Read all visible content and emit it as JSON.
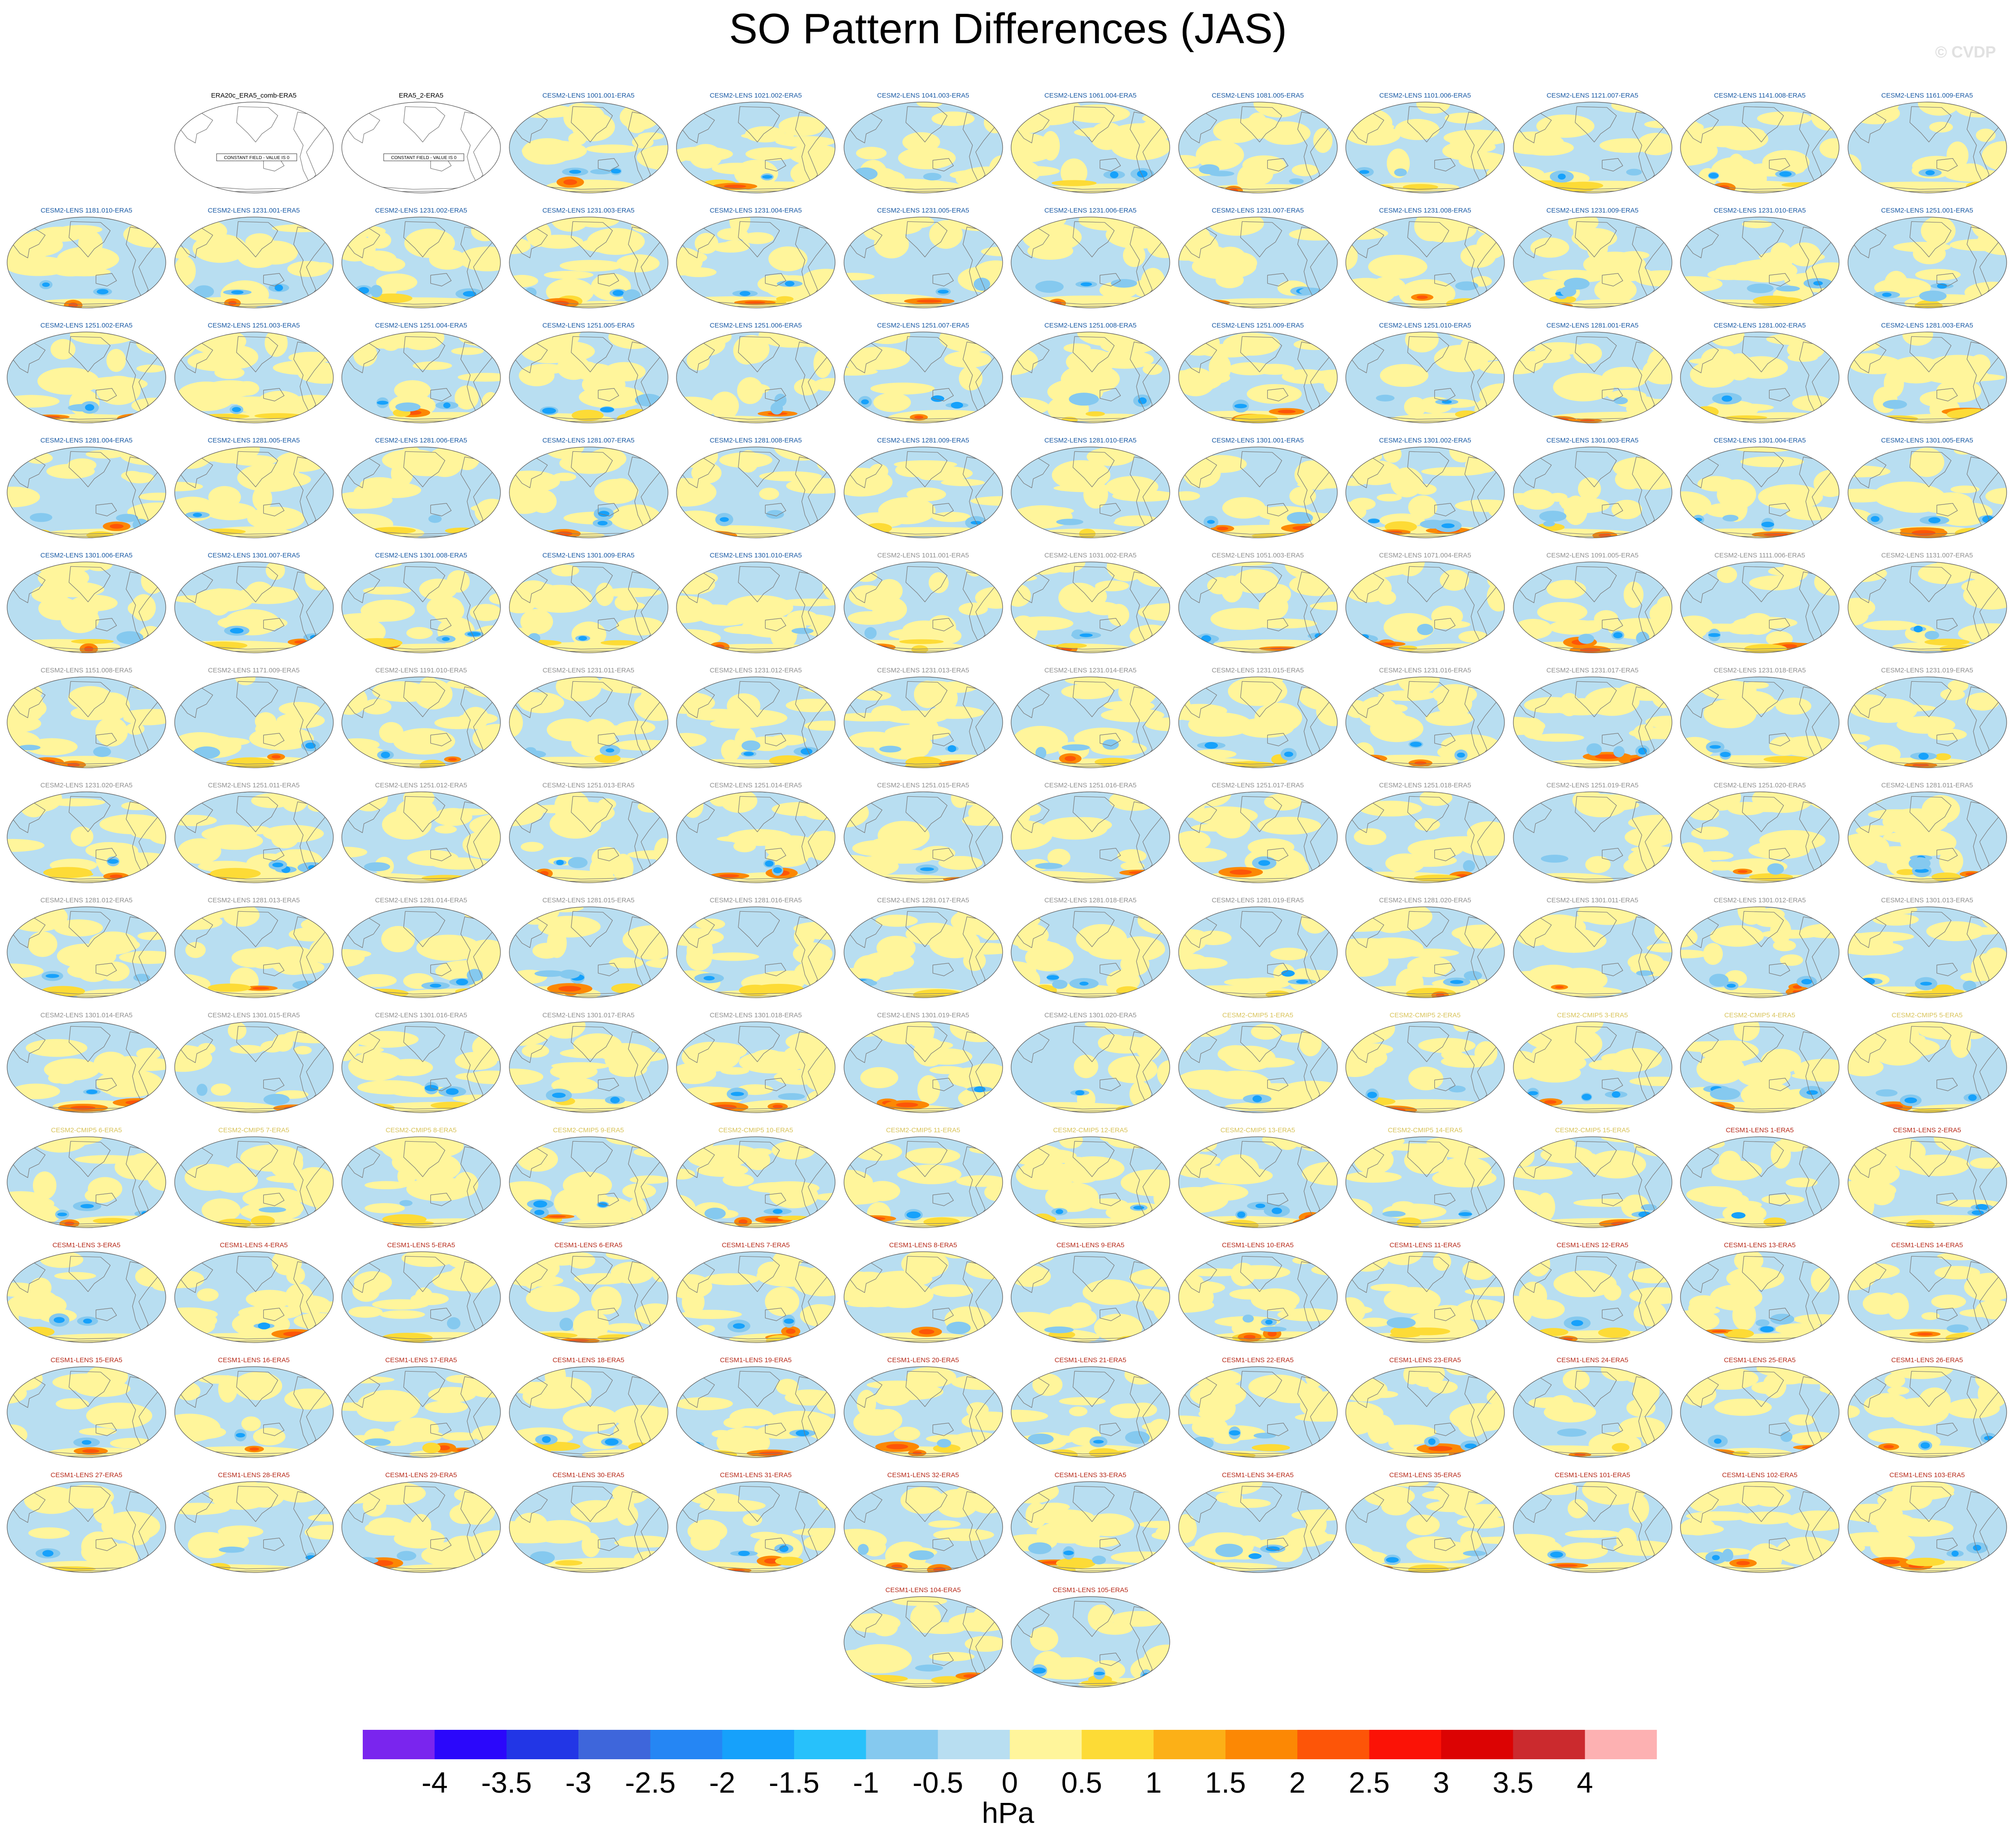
{
  "title": "SO Pattern Differences (JAS)",
  "copyright": "© CVDP",
  "chart_data": {
    "type": "heatmap",
    "title": "SO Pattern Differences (JAS)",
    "units": "hPa",
    "map_projection": "robinson",
    "colorbar": {
      "tick_labels": [
        "-4",
        "-3.5",
        "-3",
        "-2.5",
        "-2",
        "-1.5",
        "-1",
        "-0.5",
        "0",
        "0.5",
        "1",
        "1.5",
        "2",
        "2.5",
        "3",
        "3.5",
        "4"
      ],
      "colors": [
        "#7a25ee",
        "#2b07fb",
        "#2236e6",
        "#3e66db",
        "#2586f4",
        "#16a1fb",
        "#27c1fb",
        "#85c9ef",
        "#b8def1",
        "#fff59b",
        "#fddb36",
        "#fcb017",
        "#fc8804",
        "#fd5508",
        "#fb1206",
        "#dc0303",
        "#cb2a2e",
        "#fdb1b2"
      ],
      "placement": "bottom"
    },
    "panel_layout": "12 columns, 14 rows; the first row starts in column 2 and the last row holds 2 panels in columns 6 and 7",
    "group_colors": {
      "obs": "#000000",
      "cesm2_smbb": "#1a5aa4",
      "cesm2_cmip6": "#8f8f8f",
      "cesm2_cmip5": "#d8c35a",
      "cesm1": "#b62a1a"
    },
    "constant_field_text": "CONSTANT FIELD - VALUE IS 0",
    "panels": [
      {
        "title": "ERA20c_ERA5_comb-ERA5",
        "group": "obs",
        "constant": true
      },
      {
        "title": "ERA5_2-ERA5",
        "group": "obs",
        "constant": true
      },
      {
        "title": "CESM2-LENS 1001.001-ERA5",
        "group": "cesm2_smbb"
      },
      {
        "title": "CESM2-LENS 1021.002-ERA5",
        "group": "cesm2_smbb"
      },
      {
        "title": "CESM2-LENS 1041.003-ERA5",
        "group": "cesm2_smbb"
      },
      {
        "title": "CESM2-LENS 1061.004-ERA5",
        "group": "cesm2_smbb"
      },
      {
        "title": "CESM2-LENS 1081.005-ERA5",
        "group": "cesm2_smbb"
      },
      {
        "title": "CESM2-LENS 1101.006-ERA5",
        "group": "cesm2_smbb"
      },
      {
        "title": "CESM2-LENS 1121.007-ERA5",
        "group": "cesm2_smbb"
      },
      {
        "title": "CESM2-LENS 1141.008-ERA5",
        "group": "cesm2_smbb"
      },
      {
        "title": "CESM2-LENS 1161.009-ERA5",
        "group": "cesm2_smbb"
      },
      {
        "title": "CESM2-LENS 1181.010-ERA5",
        "group": "cesm2_smbb"
      },
      {
        "title": "CESM2-LENS 1231.001-ERA5",
        "group": "cesm2_smbb"
      },
      {
        "title": "CESM2-LENS 1231.002-ERA5",
        "group": "cesm2_smbb"
      },
      {
        "title": "CESM2-LENS 1231.003-ERA5",
        "group": "cesm2_smbb"
      },
      {
        "title": "CESM2-LENS 1231.004-ERA5",
        "group": "cesm2_smbb"
      },
      {
        "title": "CESM2-LENS 1231.005-ERA5",
        "group": "cesm2_smbb"
      },
      {
        "title": "CESM2-LENS 1231.006-ERA5",
        "group": "cesm2_smbb"
      },
      {
        "title": "CESM2-LENS 1231.007-ERA5",
        "group": "cesm2_smbb"
      },
      {
        "title": "CESM2-LENS 1231.008-ERA5",
        "group": "cesm2_smbb"
      },
      {
        "title": "CESM2-LENS 1231.009-ERA5",
        "group": "cesm2_smbb"
      },
      {
        "title": "CESM2-LENS 1231.010-ERA5",
        "group": "cesm2_smbb"
      },
      {
        "title": "CESM2-LENS 1251.001-ERA5",
        "group": "cesm2_smbb"
      },
      {
        "title": "CESM2-LENS 1251.002-ERA5",
        "group": "cesm2_smbb"
      },
      {
        "title": "CESM2-LENS 1251.003-ERA5",
        "group": "cesm2_smbb"
      },
      {
        "title": "CESM2-LENS 1251.004-ERA5",
        "group": "cesm2_smbb"
      },
      {
        "title": "CESM2-LENS 1251.005-ERA5",
        "group": "cesm2_smbb"
      },
      {
        "title": "CESM2-LENS 1251.006-ERA5",
        "group": "cesm2_smbb"
      },
      {
        "title": "CESM2-LENS 1251.007-ERA5",
        "group": "cesm2_smbb"
      },
      {
        "title": "CESM2-LENS 1251.008-ERA5",
        "group": "cesm2_smbb"
      },
      {
        "title": "CESM2-LENS 1251.009-ERA5",
        "group": "cesm2_smbb"
      },
      {
        "title": "CESM2-LENS 1251.010-ERA5",
        "group": "cesm2_smbb"
      },
      {
        "title": "CESM2-LENS 1281.001-ERA5",
        "group": "cesm2_smbb"
      },
      {
        "title": "CESM2-LENS 1281.002-ERA5",
        "group": "cesm2_smbb"
      },
      {
        "title": "CESM2-LENS 1281.003-ERA5",
        "group": "cesm2_smbb"
      },
      {
        "title": "CESM2-LENS 1281.004-ERA5",
        "group": "cesm2_smbb"
      },
      {
        "title": "CESM2-LENS 1281.005-ERA5",
        "group": "cesm2_smbb"
      },
      {
        "title": "CESM2-LENS 1281.006-ERA5",
        "group": "cesm2_smbb"
      },
      {
        "title": "CESM2-LENS 1281.007-ERA5",
        "group": "cesm2_smbb"
      },
      {
        "title": "CESM2-LENS 1281.008-ERA5",
        "group": "cesm2_smbb"
      },
      {
        "title": "CESM2-LENS 1281.009-ERA5",
        "group": "cesm2_smbb"
      },
      {
        "title": "CESM2-LENS 1281.010-ERA5",
        "group": "cesm2_smbb"
      },
      {
        "title": "CESM2-LENS 1301.001-ERA5",
        "group": "cesm2_smbb"
      },
      {
        "title": "CESM2-LENS 1301.002-ERA5",
        "group": "cesm2_smbb"
      },
      {
        "title": "CESM2-LENS 1301.003-ERA5",
        "group": "cesm2_smbb"
      },
      {
        "title": "CESM2-LENS 1301.004-ERA5",
        "group": "cesm2_smbb"
      },
      {
        "title": "CESM2-LENS 1301.005-ERA5",
        "group": "cesm2_smbb"
      },
      {
        "title": "CESM2-LENS 1301.006-ERA5",
        "group": "cesm2_smbb"
      },
      {
        "title": "CESM2-LENS 1301.007-ERA5",
        "group": "cesm2_smbb"
      },
      {
        "title": "CESM2-LENS 1301.008-ERA5",
        "group": "cesm2_smbb"
      },
      {
        "title": "CESM2-LENS 1301.009-ERA5",
        "group": "cesm2_smbb"
      },
      {
        "title": "CESM2-LENS 1301.010-ERA5",
        "group": "cesm2_smbb"
      },
      {
        "title": "CESM2-LENS 1011.001-ERA5",
        "group": "cesm2_cmip6"
      },
      {
        "title": "CESM2-LENS 1031.002-ERA5",
        "group": "cesm2_cmip6"
      },
      {
        "title": "CESM2-LENS 1051.003-ERA5",
        "group": "cesm2_cmip6"
      },
      {
        "title": "CESM2-LENS 1071.004-ERA5",
        "group": "cesm2_cmip6"
      },
      {
        "title": "CESM2-LENS 1091.005-ERA5",
        "group": "cesm2_cmip6"
      },
      {
        "title": "CESM2-LENS 1111.006-ERA5",
        "group": "cesm2_cmip6"
      },
      {
        "title": "CESM2-LENS 1131.007-ERA5",
        "group": "cesm2_cmip6"
      },
      {
        "title": "CESM2-LENS 1151.008-ERA5",
        "group": "cesm2_cmip6"
      },
      {
        "title": "CESM2-LENS 1171.009-ERA5",
        "group": "cesm2_cmip6"
      },
      {
        "title": "CESM2-LENS 1191.010-ERA5",
        "group": "cesm2_cmip6"
      },
      {
        "title": "CESM2-LENS 1231.011-ERA5",
        "group": "cesm2_cmip6"
      },
      {
        "title": "CESM2-LENS 1231.012-ERA5",
        "group": "cesm2_cmip6"
      },
      {
        "title": "CESM2-LENS 1231.013-ERA5",
        "group": "cesm2_cmip6"
      },
      {
        "title": "CESM2-LENS 1231.014-ERA5",
        "group": "cesm2_cmip6"
      },
      {
        "title": "CESM2-LENS 1231.015-ERA5",
        "group": "cesm2_cmip6"
      },
      {
        "title": "CESM2-LENS 1231.016-ERA5",
        "group": "cesm2_cmip6"
      },
      {
        "title": "CESM2-LENS 1231.017-ERA5",
        "group": "cesm2_cmip6"
      },
      {
        "title": "CESM2-LENS 1231.018-ERA5",
        "group": "cesm2_cmip6"
      },
      {
        "title": "CESM2-LENS 1231.019-ERA5",
        "group": "cesm2_cmip6"
      },
      {
        "title": "CESM2-LENS 1231.020-ERA5",
        "group": "cesm2_cmip6"
      },
      {
        "title": "CESM2-LENS 1251.011-ERA5",
        "group": "cesm2_cmip6"
      },
      {
        "title": "CESM2-LENS 1251.012-ERA5",
        "group": "cesm2_cmip6"
      },
      {
        "title": "CESM2-LENS 1251.013-ERA5",
        "group": "cesm2_cmip6"
      },
      {
        "title": "CESM2-LENS 1251.014-ERA5",
        "group": "cesm2_cmip6"
      },
      {
        "title": "CESM2-LENS 1251.015-ERA5",
        "group": "cesm2_cmip6"
      },
      {
        "title": "CESM2-LENS 1251.016-ERA5",
        "group": "cesm2_cmip6"
      },
      {
        "title": "CESM2-LENS 1251.017-ERA5",
        "group": "cesm2_cmip6"
      },
      {
        "title": "CESM2-LENS 1251.018-ERA5",
        "group": "cesm2_cmip6"
      },
      {
        "title": "CESM2-LENS 1251.019-ERA5",
        "group": "cesm2_cmip6"
      },
      {
        "title": "CESM2-LENS 1251.020-ERA5",
        "group": "cesm2_cmip6"
      },
      {
        "title": "CESM2-LENS 1281.011-ERA5",
        "group": "cesm2_cmip6"
      },
      {
        "title": "CESM2-LENS 1281.012-ERA5",
        "group": "cesm2_cmip6"
      },
      {
        "title": "CESM2-LENS 1281.013-ERA5",
        "group": "cesm2_cmip6"
      },
      {
        "title": "CESM2-LENS 1281.014-ERA5",
        "group": "cesm2_cmip6"
      },
      {
        "title": "CESM2-LENS 1281.015-ERA5",
        "group": "cesm2_cmip6"
      },
      {
        "title": "CESM2-LENS 1281.016-ERA5",
        "group": "cesm2_cmip6"
      },
      {
        "title": "CESM2-LENS 1281.017-ERA5",
        "group": "cesm2_cmip6"
      },
      {
        "title": "CESM2-LENS 1281.018-ERA5",
        "group": "cesm2_cmip6"
      },
      {
        "title": "CESM2-LENS 1281.019-ERA5",
        "group": "cesm2_cmip6"
      },
      {
        "title": "CESM2-LENS 1281.020-ERA5",
        "group": "cesm2_cmip6"
      },
      {
        "title": "CESM2-LENS 1301.011-ERA5",
        "group": "cesm2_cmip6"
      },
      {
        "title": "CESM2-LENS 1301.012-ERA5",
        "group": "cesm2_cmip6"
      },
      {
        "title": "CESM2-LENS 1301.013-ERA5",
        "group": "cesm2_cmip6"
      },
      {
        "title": "CESM2-LENS 1301.014-ERA5",
        "group": "cesm2_cmip6"
      },
      {
        "title": "CESM2-LENS 1301.015-ERA5",
        "group": "cesm2_cmip6"
      },
      {
        "title": "CESM2-LENS 1301.016-ERA5",
        "group": "cesm2_cmip6"
      },
      {
        "title": "CESM2-LENS 1301.017-ERA5",
        "group": "cesm2_cmip6"
      },
      {
        "title": "CESM2-LENS 1301.018-ERA5",
        "group": "cesm2_cmip6"
      },
      {
        "title": "CESM2-LENS 1301.019-ERA5",
        "group": "cesm2_cmip6"
      },
      {
        "title": "CESM2-LENS 1301.020-ERA5",
        "group": "cesm2_cmip6"
      },
      {
        "title": "CESM2-CMIP5 1-ERA5",
        "group": "cesm2_cmip5"
      },
      {
        "title": "CESM2-CMIP5 2-ERA5",
        "group": "cesm2_cmip5"
      },
      {
        "title": "CESM2-CMIP5 3-ERA5",
        "group": "cesm2_cmip5"
      },
      {
        "title": "CESM2-CMIP5 4-ERA5",
        "group": "cesm2_cmip5"
      },
      {
        "title": "CESM2-CMIP5 5-ERA5",
        "group": "cesm2_cmip5"
      },
      {
        "title": "CESM2-CMIP5 6-ERA5",
        "group": "cesm2_cmip5"
      },
      {
        "title": "CESM2-CMIP5 7-ERA5",
        "group": "cesm2_cmip5"
      },
      {
        "title": "CESM2-CMIP5 8-ERA5",
        "group": "cesm2_cmip5"
      },
      {
        "title": "CESM2-CMIP5 9-ERA5",
        "group": "cesm2_cmip5"
      },
      {
        "title": "CESM2-CMIP5 10-ERA5",
        "group": "cesm2_cmip5"
      },
      {
        "title": "CESM2-CMIP5 11-ERA5",
        "group": "cesm2_cmip5"
      },
      {
        "title": "CESM2-CMIP5 12-ERA5",
        "group": "cesm2_cmip5"
      },
      {
        "title": "CESM2-CMIP5 13-ERA5",
        "group": "cesm2_cmip5"
      },
      {
        "title": "CESM2-CMIP5 14-ERA5",
        "group": "cesm2_cmip5"
      },
      {
        "title": "CESM2-CMIP5 15-ERA5",
        "group": "cesm2_cmip5"
      },
      {
        "title": "CESM1-LENS 1-ERA5",
        "group": "cesm1"
      },
      {
        "title": "CESM1-LENS 2-ERA5",
        "group": "cesm1"
      },
      {
        "title": "CESM1-LENS 3-ERA5",
        "group": "cesm1"
      },
      {
        "title": "CESM1-LENS 4-ERA5",
        "group": "cesm1"
      },
      {
        "title": "CESM1-LENS 5-ERA5",
        "group": "cesm1"
      },
      {
        "title": "CESM1-LENS 6-ERA5",
        "group": "cesm1"
      },
      {
        "title": "CESM1-LENS 7-ERA5",
        "group": "cesm1"
      },
      {
        "title": "CESM1-LENS 8-ERA5",
        "group": "cesm1"
      },
      {
        "title": "CESM1-LENS 9-ERA5",
        "group": "cesm1"
      },
      {
        "title": "CESM1-LENS 10-ERA5",
        "group": "cesm1"
      },
      {
        "title": "CESM1-LENS 11-ERA5",
        "group": "cesm1"
      },
      {
        "title": "CESM1-LENS 12-ERA5",
        "group": "cesm1"
      },
      {
        "title": "CESM1-LENS 13-ERA5",
        "group": "cesm1"
      },
      {
        "title": "CESM1-LENS 14-ERA5",
        "group": "cesm1"
      },
      {
        "title": "CESM1-LENS 15-ERA5",
        "group": "cesm1"
      },
      {
        "title": "CESM1-LENS 16-ERA5",
        "group": "cesm1"
      },
      {
        "title": "CESM1-LENS 17-ERA5",
        "group": "cesm1"
      },
      {
        "title": "CESM1-LENS 18-ERA5",
        "group": "cesm1"
      },
      {
        "title": "CESM1-LENS 19-ERA5",
        "group": "cesm1"
      },
      {
        "title": "CESM1-LENS 20-ERA5",
        "group": "cesm1"
      },
      {
        "title": "CESM1-LENS 21-ERA5",
        "group": "cesm1"
      },
      {
        "title": "CESM1-LENS 22-ERA5",
        "group": "cesm1"
      },
      {
        "title": "CESM1-LENS 23-ERA5",
        "group": "cesm1"
      },
      {
        "title": "CESM1-LENS 24-ERA5",
        "group": "cesm1"
      },
      {
        "title": "CESM1-LENS 25-ERA5",
        "group": "cesm1"
      },
      {
        "title": "CESM1-LENS 26-ERA5",
        "group": "cesm1"
      },
      {
        "title": "CESM1-LENS 27-ERA5",
        "group": "cesm1"
      },
      {
        "title": "CESM1-LENS 28-ERA5",
        "group": "cesm1"
      },
      {
        "title": "CESM1-LENS 29-ERA5",
        "group": "cesm1"
      },
      {
        "title": "CESM1-LENS 30-ERA5",
        "group": "cesm1"
      },
      {
        "title": "CESM1-LENS 31-ERA5",
        "group": "cesm1"
      },
      {
        "title": "CESM1-LENS 32-ERA5",
        "group": "cesm1"
      },
      {
        "title": "CESM1-LENS 33-ERA5",
        "group": "cesm1"
      },
      {
        "title": "CESM1-LENS 34-ERA5",
        "group": "cesm1"
      },
      {
        "title": "CESM1-LENS 35-ERA5",
        "group": "cesm1"
      },
      {
        "title": "CESM1-LENS 101-ERA5",
        "group": "cesm1"
      },
      {
        "title": "CESM1-LENS 102-ERA5",
        "group": "cesm1"
      },
      {
        "title": "CESM1-LENS 103-ERA5",
        "group": "cesm1"
      },
      {
        "title": "CESM1-LENS 104-ERA5",
        "group": "cesm1"
      },
      {
        "title": "CESM1-LENS 105-ERA5",
        "group": "cesm1"
      }
    ]
  }
}
